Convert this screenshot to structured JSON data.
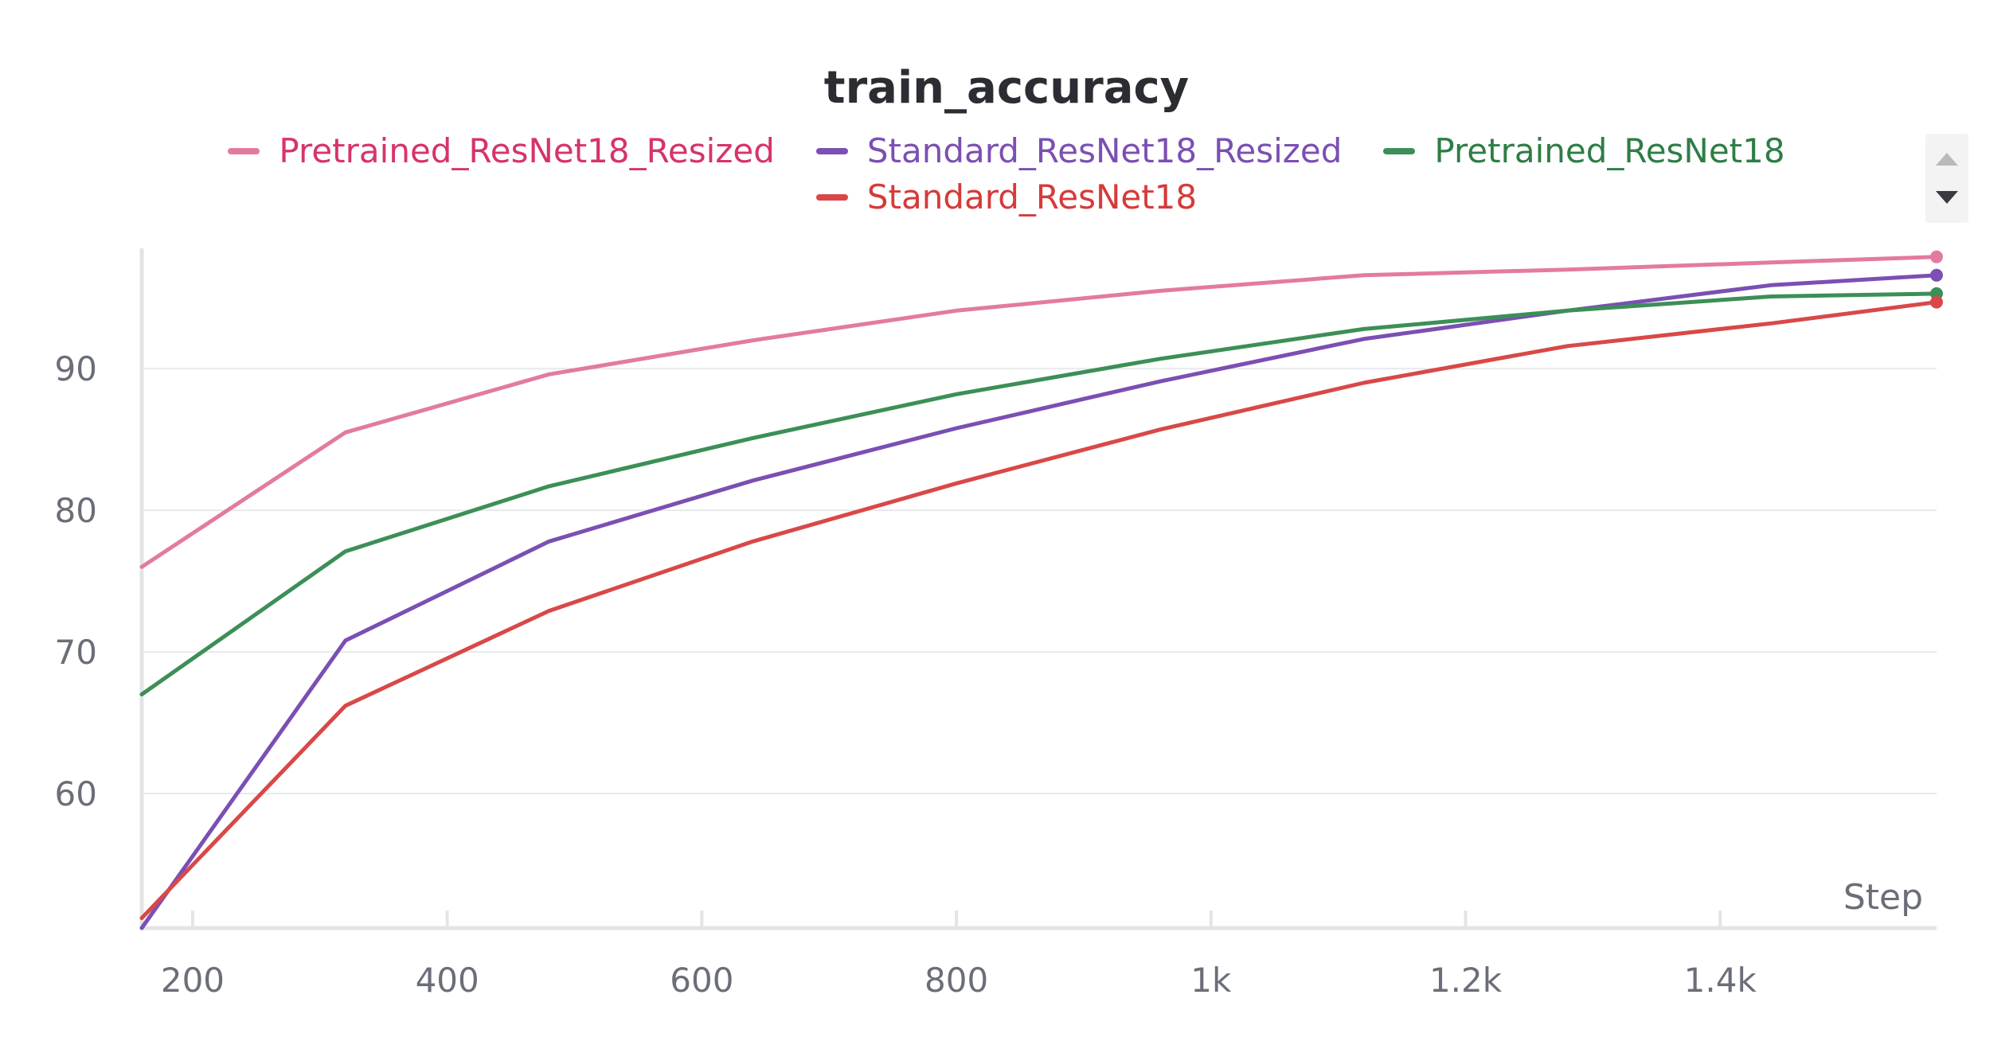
{
  "chart_data": {
    "type": "line",
    "title": "train_accuracy",
    "xlabel": "Step",
    "ylabel": "",
    "xlim": [
      160,
      1570
    ],
    "ylim": [
      50.5,
      98.5
    ],
    "x_ticks": [
      {
        "value": 200,
        "label": "200"
      },
      {
        "value": 400,
        "label": "400"
      },
      {
        "value": 600,
        "label": "600"
      },
      {
        "value": 800,
        "label": "800"
      },
      {
        "value": 1000,
        "label": "1k"
      },
      {
        "value": 1200,
        "label": "1.2k"
      },
      {
        "value": 1400,
        "label": "1.4k"
      }
    ],
    "y_ticks": [
      {
        "value": 60,
        "label": "60"
      },
      {
        "value": 70,
        "label": "70"
      },
      {
        "value": 80,
        "label": "80"
      },
      {
        "value": 90,
        "label": "90"
      }
    ],
    "grid": true,
    "legend_position": "top",
    "x": [
      160,
      320,
      480,
      640,
      800,
      960,
      1120,
      1280,
      1440,
      1570
    ],
    "series": [
      {
        "name": "Pretrained_ResNet18_Resized",
        "color": "#e37aa1",
        "label_color": "#d6336c",
        "values": [
          76.0,
          85.5,
          89.6,
          92.0,
          94.1,
          95.5,
          96.6,
          97.0,
          97.5,
          97.9
        ]
      },
      {
        "name": "Standard_ResNet18_Resized",
        "color": "#7b4fb3",
        "label_color": "#7b4fb3",
        "values": [
          50.5,
          70.8,
          77.8,
          82.1,
          85.8,
          89.1,
          92.1,
          94.1,
          95.9,
          96.6
        ]
      },
      {
        "name": "Pretrained_ResNet18",
        "color": "#3c8f57",
        "label_color": "#2e7d46",
        "values": [
          67.0,
          77.1,
          81.7,
          85.1,
          88.2,
          90.7,
          92.8,
          94.1,
          95.1,
          95.3
        ]
      },
      {
        "name": "Standard_ResNet18",
        "color": "#d94848",
        "label_color": "#d63a3a",
        "values": [
          51.2,
          66.2,
          72.9,
          77.8,
          81.9,
          85.7,
          89.0,
          91.6,
          93.2,
          94.7
        ]
      }
    ]
  }
}
